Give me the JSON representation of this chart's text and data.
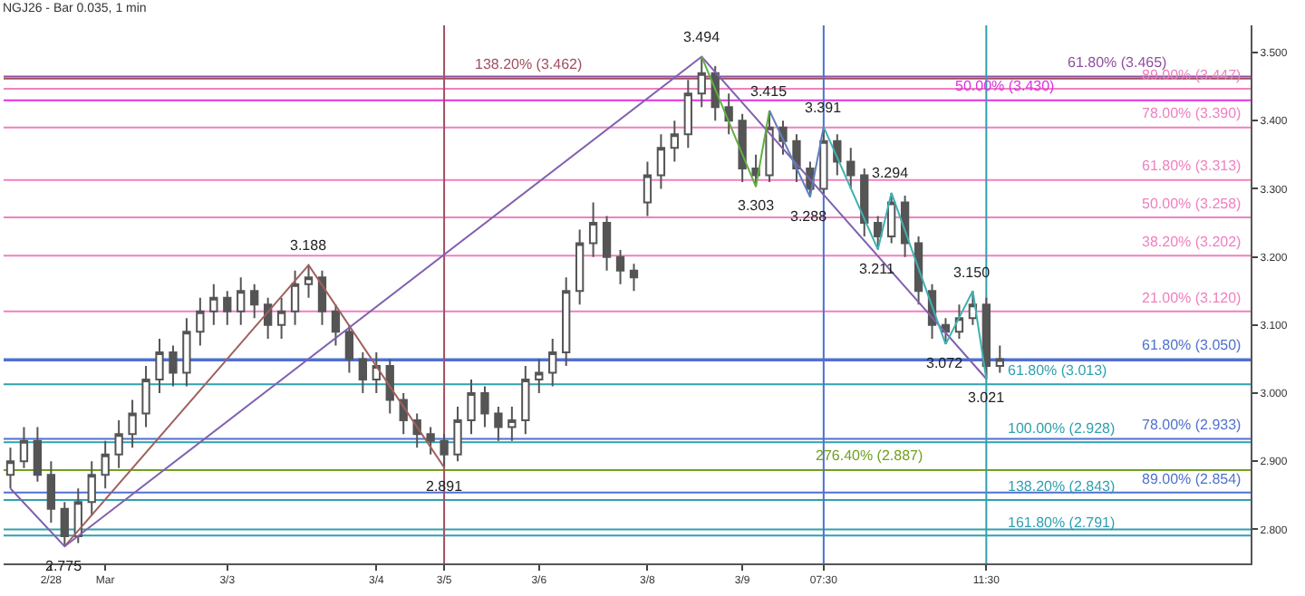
{
  "chart_data": {
    "type": "candlestick",
    "title": "NGJ26 - Bar 0.035, 1 min",
    "color": "#555555",
    "categories": [
      null,
      null,
      null,
      "2/28",
      null,
      null,
      null,
      "Mar",
      null,
      null,
      null,
      null,
      null,
      null,
      null,
      null,
      "3/3",
      null,
      null,
      null,
      null,
      null,
      null,
      null,
      null,
      null,
      null,
      "3/4",
      null,
      null,
      null,
      null,
      "3/5",
      null,
      null,
      null,
      null,
      null,
      null,
      "3/6",
      null,
      null,
      null,
      null,
      null,
      null,
      null,
      "3/8",
      null,
      null,
      null,
      null,
      null,
      null,
      "3/9",
      null,
      null,
      null,
      null,
      null,
      "07:30",
      null,
      null,
      null,
      null,
      null,
      null,
      null,
      null,
      null,
      null,
      null,
      "11:30",
      null,
      null,
      null,
      null,
      null,
      null,
      null,
      null,
      null,
      null,
      null,
      null,
      null,
      null,
      null,
      null,
      null,
      null,
      null
    ],
    "ohlc": [
      [
        2.88,
        2.92,
        2.86,
        2.9
      ],
      [
        2.9,
        2.95,
        2.89,
        2.93
      ],
      [
        2.93,
        2.95,
        2.87,
        2.88
      ],
      [
        2.88,
        2.9,
        2.81,
        2.83
      ],
      [
        2.83,
        2.84,
        2.775,
        2.79
      ],
      [
        2.79,
        2.86,
        2.78,
        2.84
      ],
      [
        2.84,
        2.9,
        2.82,
        2.88
      ],
      [
        2.88,
        2.93,
        2.86,
        2.91
      ],
      [
        2.91,
        2.96,
        2.89,
        2.94
      ],
      [
        2.94,
        2.99,
        2.92,
        2.97
      ],
      [
        2.97,
        3.04,
        2.95,
        3.02
      ],
      [
        3.02,
        3.08,
        3.0,
        3.06
      ],
      [
        3.06,
        3.07,
        3.01,
        3.03
      ],
      [
        3.03,
        3.11,
        3.01,
        3.09
      ],
      [
        3.09,
        3.14,
        3.07,
        3.12
      ],
      [
        3.12,
        3.16,
        3.1,
        3.14
      ],
      [
        3.14,
        3.15,
        3.1,
        3.12
      ],
      [
        3.12,
        3.17,
        3.1,
        3.15
      ],
      [
        3.15,
        3.16,
        3.11,
        3.13
      ],
      [
        3.13,
        3.14,
        3.08,
        3.1
      ],
      [
        3.1,
        3.14,
        3.08,
        3.12
      ],
      [
        3.12,
        3.18,
        3.1,
        3.16
      ],
      [
        3.16,
        3.188,
        3.14,
        3.17
      ],
      [
        3.17,
        3.18,
        3.1,
        3.12
      ],
      [
        3.12,
        3.13,
        3.07,
        3.09
      ],
      [
        3.09,
        3.1,
        3.03,
        3.05
      ],
      [
        3.05,
        3.06,
        3.0,
        3.02
      ],
      [
        3.02,
        3.06,
        3.0,
        3.04
      ],
      [
        3.04,
        3.05,
        2.97,
        2.99
      ],
      [
        2.99,
        3.0,
        2.94,
        2.96
      ],
      [
        2.96,
        2.97,
        2.92,
        2.94
      ],
      [
        2.94,
        2.95,
        2.91,
        2.93
      ],
      [
        2.93,
        2.94,
        2.891,
        2.91
      ],
      [
        2.91,
        2.98,
        2.9,
        2.96
      ],
      [
        2.96,
        3.02,
        2.94,
        3.0
      ],
      [
        3.0,
        3.01,
        2.95,
        2.97
      ],
      [
        2.97,
        2.98,
        2.93,
        2.95
      ],
      [
        2.95,
        2.98,
        2.93,
        2.96
      ],
      [
        2.96,
        3.04,
        2.94,
        3.02
      ],
      [
        3.02,
        3.05,
        3.0,
        3.03
      ],
      [
        3.03,
        3.08,
        3.01,
        3.06
      ],
      [
        3.06,
        3.17,
        3.04,
        3.15
      ],
      [
        3.15,
        3.24,
        3.13,
        3.22
      ],
      [
        3.22,
        3.28,
        3.2,
        3.25
      ],
      [
        3.25,
        3.26,
        3.18,
        3.2
      ],
      [
        3.2,
        3.21,
        3.16,
        3.18
      ],
      [
        3.18,
        3.19,
        3.15,
        3.17
      ],
      [
        3.28,
        3.34,
        3.26,
        3.32
      ],
      [
        3.32,
        3.38,
        3.3,
        3.36
      ],
      [
        3.36,
        3.4,
        3.34,
        3.38
      ],
      [
        3.38,
        3.46,
        3.36,
        3.44
      ],
      [
        3.44,
        3.494,
        3.42,
        3.47
      ],
      [
        3.47,
        3.48,
        3.4,
        3.42
      ],
      [
        3.42,
        3.44,
        3.38,
        3.4
      ],
      [
        3.4,
        3.41,
        3.31,
        3.33
      ],
      [
        3.33,
        3.35,
        3.303,
        3.32
      ],
      [
        3.32,
        3.415,
        3.31,
        3.39
      ],
      [
        3.39,
        3.4,
        3.35,
        3.37
      ],
      [
        3.37,
        3.38,
        3.31,
        3.33
      ],
      [
        3.33,
        3.34,
        3.288,
        3.3
      ],
      [
        3.3,
        3.391,
        3.29,
        3.37
      ],
      [
        3.37,
        3.38,
        3.32,
        3.34
      ],
      [
        3.34,
        3.36,
        3.3,
        3.32
      ],
      [
        3.32,
        3.33,
        3.23,
        3.25
      ],
      [
        3.25,
        3.26,
        3.211,
        3.23
      ],
      [
        3.23,
        3.294,
        3.22,
        3.28
      ],
      [
        3.28,
        3.29,
        3.2,
        3.22
      ],
      [
        3.22,
        3.23,
        3.13,
        3.15
      ],
      [
        3.15,
        3.16,
        3.08,
        3.1
      ],
      [
        3.1,
        3.11,
        3.072,
        3.09
      ],
      [
        3.09,
        3.13,
        3.08,
        3.11
      ],
      [
        3.11,
        3.15,
        3.1,
        3.13
      ],
      [
        3.13,
        3.14,
        3.021,
        3.04
      ],
      [
        3.04,
        3.07,
        3.03,
        3.05
      ],
      null,
      null,
      null,
      null,
      null,
      null,
      null,
      null,
      null,
      null,
      null,
      null,
      null,
      null,
      null,
      null,
      null,
      null
    ],
    "value_labels": [
      null,
      null,
      null,
      null,
      "2.775",
      null,
      null,
      null,
      null,
      null,
      null,
      null,
      null,
      null,
      null,
      null,
      null,
      null,
      null,
      null,
      null,
      null,
      "3.188",
      null,
      null,
      null,
      null,
      null,
      null,
      null,
      null,
      null,
      "2.891",
      null,
      null,
      null,
      null,
      null,
      null,
      null,
      null,
      null,
      null,
      null,
      null,
      null,
      null,
      null,
      null,
      null,
      null,
      "3.494",
      null,
      null,
      null,
      "3.303",
      "3.415",
      null,
      null,
      "3.288",
      "3.391",
      null,
      null,
      null,
      "3.211",
      "3.294",
      null,
      null,
      null,
      "3.072",
      null,
      "3.150",
      "3.021",
      null,
      null,
      null,
      null,
      null,
      null,
      null,
      null,
      null,
      null,
      null,
      null,
      null,
      null,
      null,
      null,
      null,
      null,
      null
    ],
    "series": [
      {
        "type": "line",
        "color": "#a06060",
        "values": [
          null,
          null,
          null,
          null,
          2.775,
          null,
          null,
          null,
          null,
          null,
          null,
          null,
          null,
          null,
          null,
          null,
          null,
          null,
          null,
          null,
          null,
          null,
          3.188,
          null,
          null,
          null,
          null,
          null,
          null,
          null,
          null,
          null,
          2.891,
          null,
          null,
          null,
          null,
          null,
          null,
          null,
          null,
          null,
          null,
          null,
          null,
          null,
          null,
          null,
          null,
          null,
          null,
          null,
          null,
          null,
          null,
          null,
          null,
          null,
          null,
          null,
          null,
          null,
          null,
          null,
          null,
          null,
          null,
          null,
          null,
          null,
          null,
          null,
          null,
          null,
          null,
          null,
          null,
          null,
          null,
          null,
          null,
          null,
          null,
          null,
          null,
          null,
          null,
          null,
          null,
          null,
          null,
          null
        ]
      },
      {
        "type": "line",
        "color": "#8060b0",
        "values": [
          2.86,
          null,
          null,
          null,
          2.775,
          null,
          null,
          null,
          null,
          null,
          null,
          null,
          null,
          null,
          null,
          null,
          null,
          null,
          null,
          null,
          null,
          null,
          null,
          null,
          null,
          null,
          null,
          null,
          null,
          null,
          null,
          null,
          null,
          null,
          null,
          null,
          null,
          null,
          null,
          null,
          null,
          null,
          null,
          null,
          null,
          null,
          null,
          null,
          null,
          null,
          null,
          3.494,
          null,
          null,
          null,
          null,
          null,
          null,
          null,
          null,
          null,
          null,
          null,
          null,
          null,
          null,
          null,
          null,
          null,
          null,
          null,
          null,
          3.021,
          null,
          null,
          null,
          null,
          null,
          null,
          null,
          null,
          null,
          null,
          null,
          null,
          null,
          null,
          null,
          null,
          null,
          null,
          null
        ]
      },
      {
        "type": "line",
        "color": "#60b040",
        "values": [
          null,
          null,
          null,
          null,
          null,
          null,
          null,
          null,
          null,
          null,
          null,
          null,
          null,
          null,
          null,
          null,
          null,
          null,
          null,
          null,
          null,
          null,
          null,
          null,
          null,
          null,
          null,
          null,
          null,
          null,
          null,
          null,
          null,
          null,
          null,
          null,
          null,
          null,
          null,
          null,
          null,
          null,
          null,
          null,
          null,
          null,
          null,
          null,
          null,
          null,
          null,
          3.494,
          null,
          null,
          null,
          3.303,
          3.415,
          null,
          null,
          null,
          null,
          null,
          null,
          null,
          null,
          null,
          null,
          null,
          null,
          null,
          null,
          null,
          null,
          null,
          null,
          null,
          null,
          null,
          null,
          null,
          null,
          null,
          null,
          null,
          null,
          null,
          null,
          null,
          null,
          null,
          null,
          null
        ]
      },
      {
        "type": "line",
        "color": "#6080c0",
        "values": [
          null,
          null,
          null,
          null,
          null,
          null,
          null,
          null,
          null,
          null,
          null,
          null,
          null,
          null,
          null,
          null,
          null,
          null,
          null,
          null,
          null,
          null,
          null,
          null,
          null,
          null,
          null,
          null,
          null,
          null,
          null,
          null,
          null,
          null,
          null,
          null,
          null,
          null,
          null,
          null,
          null,
          null,
          null,
          null,
          null,
          null,
          null,
          null,
          null,
          null,
          null,
          null,
          null,
          null,
          null,
          null,
          3.415,
          null,
          null,
          3.288,
          3.391,
          null,
          null,
          null,
          null,
          null,
          null,
          null,
          null,
          null,
          null,
          null,
          null,
          null,
          null,
          null,
          null,
          null,
          null,
          null,
          null,
          null,
          null,
          null,
          null,
          null,
          null,
          null,
          null,
          null,
          null,
          null
        ]
      },
      {
        "type": "line",
        "color": "#40b0b0",
        "values": [
          null,
          null,
          null,
          null,
          null,
          null,
          null,
          null,
          null,
          null,
          null,
          null,
          null,
          null,
          null,
          null,
          null,
          null,
          null,
          null,
          null,
          null,
          null,
          null,
          null,
          null,
          null,
          null,
          null,
          null,
          null,
          null,
          null,
          null,
          null,
          null,
          null,
          null,
          null,
          null,
          null,
          null,
          null,
          null,
          null,
          null,
          null,
          null,
          null,
          null,
          null,
          null,
          null,
          null,
          null,
          null,
          null,
          null,
          null,
          null,
          3.391,
          null,
          null,
          null,
          3.211,
          3.294,
          null,
          null,
          null,
          3.072,
          null,
          3.15,
          3.021,
          null,
          null,
          null,
          null,
          null,
          null,
          null,
          null,
          null,
          null,
          null,
          null,
          null,
          null,
          null,
          null,
          null,
          null,
          null
        ]
      }
    ],
    "ylim": [
      2.75,
      3.54
    ],
    "yticks": [
      {
        "value": 2.8,
        "label": "2.800"
      },
      {
        "value": 2.9,
        "label": "2.900"
      },
      {
        "value": 3.0,
        "label": "3.000"
      },
      {
        "value": 3.1,
        "label": "3.100"
      },
      {
        "value": 3.2,
        "label": "3.200"
      },
      {
        "value": 3.3,
        "label": "3.300"
      },
      {
        "value": 3.4,
        "label": "3.400"
      },
      {
        "value": 3.5,
        "label": "3.500"
      }
    ],
    "grid": false,
    "ref_lines": [
      {
        "axis": "y",
        "value": 3.462,
        "label": "138.20% (3.462)",
        "color": "#a05060"
      },
      {
        "axis": "y",
        "value": 3.465,
        "label": "61.80% (3.465)",
        "color": "#9050a0"
      },
      {
        "axis": "y",
        "value": 3.447,
        "label": "89.00% (3.447)",
        "color": "#f080c0"
      },
      {
        "axis": "y",
        "value": 3.43,
        "label": "50.00% (3.430)",
        "color": "#e030e0"
      },
      {
        "axis": "y",
        "value": 3.39,
        "label": "78.00% (3.390)",
        "color": "#f080c0"
      },
      {
        "axis": "y",
        "value": 3.313,
        "label": "61.80% (3.313)",
        "color": "#f080c0"
      },
      {
        "axis": "y",
        "value": 3.258,
        "label": "50.00% (3.258)",
        "color": "#f080c0"
      },
      {
        "axis": "y",
        "value": 3.202,
        "label": "38.20% (3.202)",
        "color": "#f080c0"
      },
      {
        "axis": "y",
        "value": 3.12,
        "label": "21.00% (3.120)",
        "color": "#f080c0"
      },
      {
        "axis": "y",
        "value": 3.05,
        "label": "61.80% (3.050)",
        "color": "#5070d0"
      },
      {
        "axis": "y",
        "value": 3.013,
        "label": "61.80% (3.013)",
        "color": "#30a0b0"
      },
      {
        "axis": "y",
        "value": 2.928,
        "label": "100.00% (2.928)",
        "color": "#30a0b0"
      },
      {
        "axis": "y",
        "value": 2.933,
        "label": "78.00% (2.933)",
        "color": "#5070d0"
      },
      {
        "axis": "y",
        "value": 2.887,
        "label": "276.40% (2.887)",
        "color": "#70a020"
      },
      {
        "axis": "y",
        "value": 2.843,
        "label": "138.20% (2.843)",
        "color": "#30a0b0"
      },
      {
        "axis": "y",
        "value": 2.854,
        "label": "89.00% (2.854)",
        "color": "#5070d0"
      },
      {
        "axis": "y",
        "value": 2.791,
        "label": "161.80% (2.791)",
        "color": "#30a0b0"
      },
      {
        "axis": "y",
        "value": 3.048,
        "label": null,
        "color": "#5070d0"
      },
      {
        "axis": "y",
        "value": 2.8,
        "label": null,
        "color": "#30a0b0"
      },
      {
        "axis": "x",
        "value": "3/5",
        "label": null,
        "color": "#a05060"
      },
      {
        "axis": "x",
        "value": "07:30",
        "label": null,
        "color": "#5070d0"
      },
      {
        "axis": "x",
        "value": "11:30",
        "label": null,
        "color": "#30a0b0"
      }
    ]
  }
}
